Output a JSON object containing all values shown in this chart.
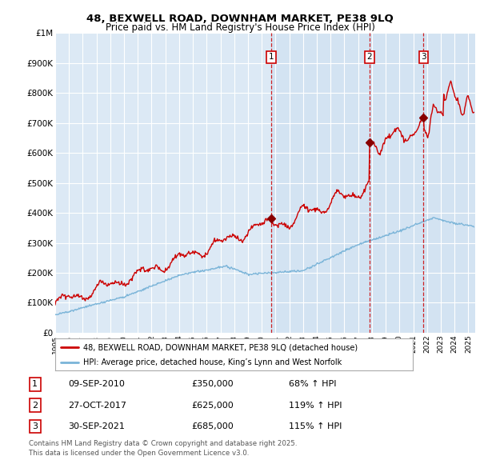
{
  "title1": "48, BEXWELL ROAD, DOWNHAM MARKET, PE38 9LQ",
  "title2": "Price paid vs. HM Land Registry's House Price Index (HPI)",
  "bg_color": "#dce9f5",
  "red_line_color": "#cc0000",
  "blue_line_color": "#7ab4d8",
  "red_line_label": "48, BEXWELL ROAD, DOWNHAM MARKET, PE38 9LQ (detached house)",
  "blue_line_label": "HPI: Average price, detached house, King’s Lynn and West Norfolk",
  "transactions": [
    {
      "num": 1,
      "date": "09-SEP-2010",
      "price": 350000,
      "hpi_pct": "68%",
      "x_year": 2010.7
    },
    {
      "num": 2,
      "date": "27-OCT-2017",
      "price": 625000,
      "hpi_pct": "119%",
      "x_year": 2017.82
    },
    {
      "num": 3,
      "date": "30-SEP-2021",
      "price": 685000,
      "hpi_pct": "115%",
      "x_year": 2021.75
    }
  ],
  "footer": "Contains HM Land Registry data © Crown copyright and database right 2025.\nThis data is licensed under the Open Government Licence v3.0.",
  "ylim": [
    0,
    1000000
  ],
  "xlim_start": 1995,
  "xlim_end": 2025.5,
  "ytick_labels": [
    "£0",
    "£100K",
    "£200K",
    "£300K",
    "£400K",
    "£500K",
    "£600K",
    "£700K",
    "£800K",
    "£900K",
    "£1M"
  ],
  "ytick_values": [
    0,
    100000,
    200000,
    300000,
    400000,
    500000,
    600000,
    700000,
    800000,
    900000,
    1000000
  ]
}
